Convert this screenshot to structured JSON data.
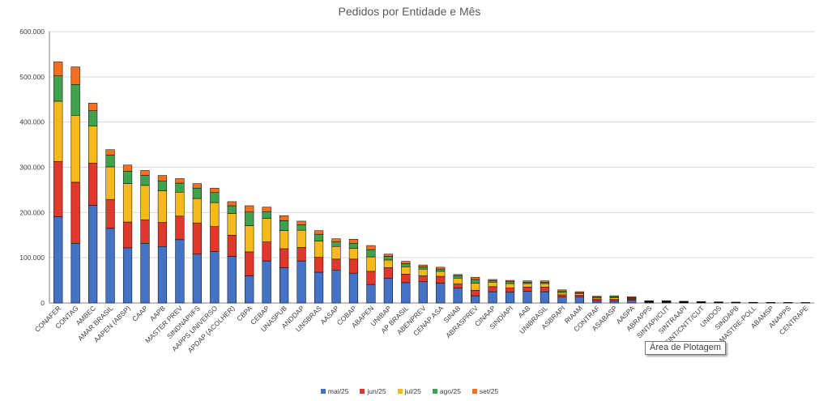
{
  "chart_data": {
    "type": "bar",
    "stacked": true,
    "title": "Pedidos por Entidade e Mês",
    "ylim": [
      0,
      600000
    ],
    "yticks": [
      "0",
      "100.000",
      "200.000",
      "300.000",
      "400.000",
      "500.000",
      "600.000"
    ],
    "grid": true,
    "legend_position": "bottom",
    "categories": [
      "CONAFER",
      "CONTAG",
      "AMBEC",
      "AMAR BRASIL",
      "AAPEN (ABSP)",
      "CAAP",
      "AAPB",
      "MASTER PREV",
      "SINDNAPI/FS",
      "AAPPS UNIVERSO",
      "APDAP (ACOLHER)",
      "CBPA",
      "CEBAP",
      "UNASPUB",
      "ANDDAP",
      "UNSBRAS",
      "AASAP",
      "COBAP",
      "ABAPEN",
      "UNIBAP",
      "AP BRASIL",
      "ABENPREV",
      "CENAP ASA",
      "SINAB",
      "ABRASPREV",
      "CINAAP",
      "SINDIAPI",
      "AAB",
      "UNIBRASIL",
      "ASBRAPI",
      "RIAAM",
      "CONTRAF",
      "ASABASP",
      "AASPA",
      "ABRAPPS",
      "SINTAPI/CUT",
      "SINTRAAPI",
      "SINT/CNTT/CUT",
      "UNIDOS",
      "SINDAPB",
      "MASTRE-POLL",
      "ABAMSP",
      "ANAPPS",
      "CENTRAPE"
    ],
    "series": [
      {
        "name": "mai/25",
        "color": "#4472C4",
        "values": [
          191000,
          132000,
          216000,
          165000,
          122000,
          132000,
          125000,
          140000,
          108000,
          114000,
          103000,
          60000,
          93000,
          78000,
          93000,
          68000,
          73000,
          66000,
          41000,
          55000,
          45000,
          47000,
          44000,
          33000,
          16000,
          25000,
          24000,
          26000,
          25000,
          13000,
          13000,
          5000,
          5000,
          6000,
          1500,
          1500,
          1000,
          800,
          600,
          500,
          400,
          300,
          300,
          200
        ]
      },
      {
        "name": "jun/25",
        "color": "#E0392B",
        "values": [
          122000,
          135000,
          93000,
          64000,
          57000,
          52000,
          53000,
          52000,
          69000,
          55000,
          47000,
          53000,
          42000,
          42000,
          30000,
          33000,
          24000,
          31000,
          29000,
          23000,
          19000,
          13000,
          15000,
          9000,
          12000,
          11000,
          9000,
          9000,
          10000,
          5000,
          4000,
          3000,
          3000,
          2000,
          1000,
          1000,
          800,
          600,
          500,
          400,
          300,
          300,
          200,
          200
        ]
      },
      {
        "name": "jul/25",
        "color": "#F5B91C",
        "values": [
          133000,
          148000,
          82000,
          72000,
          85000,
          76000,
          70000,
          53000,
          54000,
          53000,
          48000,
          58000,
          52000,
          40000,
          38000,
          36000,
          28000,
          24000,
          32000,
          17000,
          16000,
          15000,
          11000,
          13000,
          16000,
          10000,
          10000,
          8000,
          8000,
          5000,
          4000,
          3000,
          4000,
          2000,
          1000,
          1000,
          800,
          600,
          500,
          400,
          300,
          300,
          200,
          200
        ]
      },
      {
        "name": "ago/25",
        "color": "#3FA34D",
        "values": [
          56000,
          68000,
          34000,
          26000,
          27000,
          22000,
          22000,
          20000,
          23000,
          22000,
          17000,
          30000,
          15000,
          22000,
          12000,
          15000,
          10000,
          11000,
          16000,
          8000,
          7000,
          5000,
          5000,
          5000,
          8000,
          3000,
          4000,
          3000,
          3000,
          3000,
          2000,
          2000,
          2000,
          2000,
          1000,
          1000,
          800,
          600,
          500,
          400,
          300,
          300,
          200,
          200
        ]
      },
      {
        "name": "set/25",
        "color": "#F37021",
        "values": [
          31000,
          39000,
          17000,
          12000,
          14000,
          11000,
          12000,
          10000,
          10000,
          10000,
          9000,
          14000,
          10000,
          11000,
          8000,
          8000,
          7000,
          9000,
          9000,
          5000,
          5000,
          4000,
          4000,
          3000,
          5000,
          3000,
          3000,
          3000,
          3000,
          3000,
          2000,
          2000,
          2000,
          2000,
          500,
          500,
          400,
          400,
          300,
          200,
          200,
          200,
          100,
          100
        ]
      }
    ]
  },
  "tooltip": {
    "text": "Área de Plotagem"
  }
}
